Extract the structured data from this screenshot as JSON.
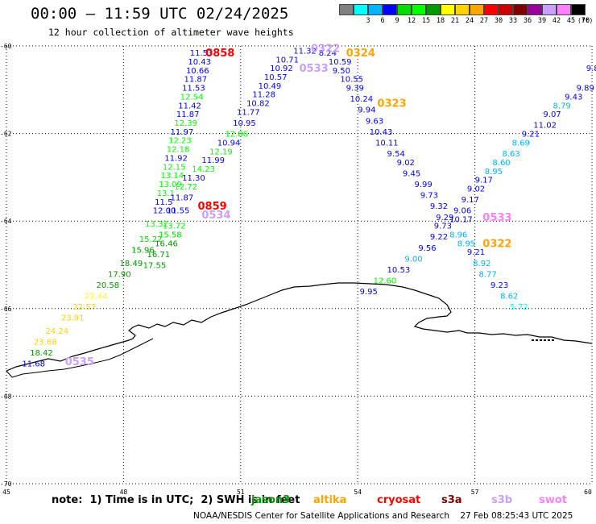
{
  "title": "00:00 – 11:59 UTC 02/24/2025",
  "subtitle": "12 hour collection of altimeter wave heights",
  "colorbar": {
    "unit": "(ft)",
    "cells": [
      {
        "color": "#808080",
        "label": ""
      },
      {
        "color": "#00ffff",
        "label": "3"
      },
      {
        "color": "#00b4ff",
        "label": "6"
      },
      {
        "color": "#0000ff",
        "label": "9"
      },
      {
        "color": "#00dd00",
        "label": "12"
      },
      {
        "color": "#00ff00",
        "label": "15"
      },
      {
        "color": "#009900",
        "label": "18"
      },
      {
        "color": "#ffff00",
        "label": "21"
      },
      {
        "color": "#ffd200",
        "label": "24"
      },
      {
        "color": "#ffa500",
        "label": "27"
      },
      {
        "color": "#ff0000",
        "label": "30"
      },
      {
        "color": "#cc0000",
        "label": "33"
      },
      {
        "color": "#800000",
        "label": "36"
      },
      {
        "color": "#990099",
        "label": "39"
      },
      {
        "color": "#c8a0ff",
        "label": "42"
      },
      {
        "color": "#ff80ff",
        "label": "45"
      },
      {
        "color": "#000000",
        "label": "70"
      }
    ]
  },
  "map": {
    "lon_ticks": [
      "45",
      "48",
      "51",
      "54",
      "57",
      "60"
    ],
    "lat_ticks": [
      "-60",
      "-62",
      "-64",
      "-66",
      "-68",
      "-70"
    ],
    "lon_range": [
      45,
      60
    ],
    "lat_range": [
      -60,
      -70
    ],
    "stamps": [
      {
        "text": "0858",
        "color": "#ff0000",
        "lon": 50.1,
        "lat": -60.15
      },
      {
        "text": "0859",
        "color": "#ff0000",
        "lon": 49.9,
        "lat": -63.65
      },
      {
        "text": "0534",
        "color": "#c8a0ff",
        "lon": 50.0,
        "lat": -63.85
      },
      {
        "text": "0535",
        "color": "#c8a0ff",
        "lon": 46.5,
        "lat": -67.2
      },
      {
        "text": "0533",
        "color": "#c8a0ff",
        "lon": 52.5,
        "lat": -60.5
      },
      {
        "text": "0324",
        "color": "#ffa500",
        "lon": 53.7,
        "lat": -60.15
      },
      {
        "text": "0323",
        "color": "#ffa500",
        "lon": 54.5,
        "lat": -61.3
      },
      {
        "text": "0322",
        "color": "#ffa500",
        "lon": 57.2,
        "lat": -64.5
      },
      {
        "text": "0533",
        "color": "#ff80ff",
        "lon": 57.2,
        "lat": -63.9
      },
      {
        "text": "0322",
        "color": "#c8a0ff",
        "lon": 52.8,
        "lat": -60.05
      }
    ],
    "tracks": [
      [
        {
          "v": "11.53",
          "c": "#0000ff",
          "lon": 49.7,
          "lat": -60.15
        },
        {
          "v": "10.43",
          "c": "#0000ff",
          "lon": 49.65,
          "lat": -60.35
        },
        {
          "v": "10.66",
          "c": "#0000ff",
          "lon": 49.6,
          "lat": -60.55
        },
        {
          "v": "11.87",
          "c": "#0000ff",
          "lon": 49.55,
          "lat": -60.75
        },
        {
          "v": "11.53",
          "c": "#0000ff",
          "lon": 49.5,
          "lat": -60.95
        },
        {
          "v": "12.54",
          "c": "#00ff00",
          "lon": 49.45,
          "lat": -61.15
        },
        {
          "v": "11.42",
          "c": "#0000ff",
          "lon": 49.4,
          "lat": -61.35
        },
        {
          "v": "11.87",
          "c": "#0000ff",
          "lon": 49.35,
          "lat": -61.55
        },
        {
          "v": "12.39",
          "c": "#00ff00",
          "lon": 49.3,
          "lat": -61.75
        },
        {
          "v": "11.97",
          "c": "#0000ff",
          "lon": 49.2,
          "lat": -61.95
        },
        {
          "v": "12.23",
          "c": "#00ff00",
          "lon": 49.15,
          "lat": -62.15
        },
        {
          "v": "12.18",
          "c": "#00ff00",
          "lon": 49.1,
          "lat": -62.35
        },
        {
          "v": "11.92",
          "c": "#0000ff",
          "lon": 49.05,
          "lat": -62.55
        },
        {
          "v": "12.15",
          "c": "#00ff00",
          "lon": 49.0,
          "lat": -62.75
        },
        {
          "v": "13.14",
          "c": "#00ff00",
          "lon": 48.95,
          "lat": -62.95
        },
        {
          "v": "13.09",
          "c": "#00ff00",
          "lon": 48.9,
          "lat": -63.15
        },
        {
          "v": "13.1",
          "c": "#00ff00",
          "lon": 48.85,
          "lat": -63.35
        },
        {
          "v": "11.5",
          "c": "#0000ff",
          "lon": 48.8,
          "lat": -63.55
        },
        {
          "v": "12.00",
          "c": "#0000ff",
          "lon": 48.75,
          "lat": -63.75
        },
        {
          "v": "13.32",
          "c": "#00ff00",
          "lon": 48.55,
          "lat": -64.05
        },
        {
          "v": "15.22",
          "c": "#00dd00",
          "lon": 48.4,
          "lat": -64.4
        },
        {
          "v": "15.96",
          "c": "#009900",
          "lon": 48.2,
          "lat": -64.65
        },
        {
          "v": "18.49",
          "c": "#009900",
          "lon": 47.9,
          "lat": -64.95
        },
        {
          "v": "17.90",
          "c": "#009900",
          "lon": 47.6,
          "lat": -65.2
        },
        {
          "v": "20.58",
          "c": "#009900",
          "lon": 47.3,
          "lat": -65.45
        },
        {
          "v": "22.44",
          "c": "#ffff00",
          "lon": 47.0,
          "lat": -65.7
        },
        {
          "v": "22.57",
          "c": "#ffd200",
          "lon": 46.7,
          "lat": -65.95
        },
        {
          "v": "23.91",
          "c": "#ffd200",
          "lon": 46.4,
          "lat": -66.2
        },
        {
          "v": "24.24",
          "c": "#ffd200",
          "lon": 46.0,
          "lat": -66.5
        },
        {
          "v": "23.68",
          "c": "#ffd200",
          "lon": 45.7,
          "lat": -66.75
        },
        {
          "v": "18.42",
          "c": "#009900",
          "lon": 45.6,
          "lat": -67.0
        },
        {
          "v": "11.68",
          "c": "#0000ff",
          "lon": 45.4,
          "lat": -67.25
        }
      ],
      [
        {
          "v": "12.86",
          "c": "#00ff00",
          "lon": 50.6,
          "lat": -62.0
        },
        {
          "v": "10.94",
          "c": "#0000ff",
          "lon": 50.4,
          "lat": -62.2
        },
        {
          "v": "12.19",
          "c": "#00ff00",
          "lon": 50.2,
          "lat": -62.4
        },
        {
          "v": "11.99",
          "c": "#0000ff",
          "lon": 50.0,
          "lat": -62.6
        },
        {
          "v": "14.23",
          "c": "#00ff00",
          "lon": 49.75,
          "lat": -62.8
        },
        {
          "v": "11.30",
          "c": "#0000ff",
          "lon": 49.5,
          "lat": -63.0
        },
        {
          "v": "12.72",
          "c": "#00ff00",
          "lon": 49.3,
          "lat": -63.2
        },
        {
          "v": "11.87",
          "c": "#0000ff",
          "lon": 49.2,
          "lat": -63.45
        },
        {
          "v": "11.55",
          "c": "#0000ff",
          "lon": 49.1,
          "lat": -63.75
        },
        {
          "v": "13.72",
          "c": "#00ff00",
          "lon": 49.0,
          "lat": -64.1
        },
        {
          "v": "15.58",
          "c": "#00dd00",
          "lon": 48.9,
          "lat": -64.3
        },
        {
          "v": "16.46",
          "c": "#009900",
          "lon": 48.8,
          "lat": -64.5
        },
        {
          "v": "16.71",
          "c": "#009900",
          "lon": 48.6,
          "lat": -64.75
        },
        {
          "v": "17.55",
          "c": "#009900",
          "lon": 48.5,
          "lat": -65.0
        }
      ],
      [
        {
          "v": "11.32",
          "c": "#0000ff",
          "lon": 52.35,
          "lat": -60.1
        },
        {
          "v": "10.71",
          "c": "#0000ff",
          "lon": 51.9,
          "lat": -60.3
        },
        {
          "v": "10.92",
          "c": "#0000ff",
          "lon": 51.75,
          "lat": -60.5
        },
        {
          "v": "10.57",
          "c": "#0000ff",
          "lon": 51.6,
          "lat": -60.7
        },
        {
          "v": "10.49",
          "c": "#0000ff",
          "lon": 51.45,
          "lat": -60.9
        },
        {
          "v": "11.28",
          "c": "#0000ff",
          "lon": 51.3,
          "lat": -61.1
        },
        {
          "v": "10.82",
          "c": "#0000ff",
          "lon": 51.15,
          "lat": -61.3
        },
        {
          "v": "11.77",
          "c": "#0000ff",
          "lon": 50.9,
          "lat": -61.5
        },
        {
          "v": "10.95",
          "c": "#0000ff",
          "lon": 50.8,
          "lat": -61.75
        }
      ],
      [
        {
          "v": "8.24",
          "c": "#0000ff",
          "lon": 53.0,
          "lat": -60.15
        },
        {
          "v": "10.59",
          "c": "#0000ff",
          "lon": 53.25,
          "lat": -60.35
        },
        {
          "v": "9.50",
          "c": "#0000ff",
          "lon": 53.35,
          "lat": -60.55
        },
        {
          "v": "10.55",
          "c": "#0000ff",
          "lon": 53.55,
          "lat": -60.75
        },
        {
          "v": "9.39",
          "c": "#0000ff",
          "lon": 53.7,
          "lat": -60.95
        },
        {
          "v": "10.24",
          "c": "#0000ff",
          "lon": 53.8,
          "lat": -61.2
        },
        {
          "v": "9.94",
          "c": "#0000ff",
          "lon": 54.0,
          "lat": -61.45
        },
        {
          "v": "9.63",
          "c": "#0000ff",
          "lon": 54.2,
          "lat": -61.7
        },
        {
          "v": "10.43",
          "c": "#0000ff",
          "lon": 54.3,
          "lat": -61.95
        },
        {
          "v": "10.11",
          "c": "#0000ff",
          "lon": 54.45,
          "lat": -62.2
        },
        {
          "v": "9.54",
          "c": "#0000ff",
          "lon": 54.75,
          "lat": -62.45
        },
        {
          "v": "9.02",
          "c": "#0000ff",
          "lon": 55.0,
          "lat": -62.65
        },
        {
          "v": "9.45",
          "c": "#0000ff",
          "lon": 55.15,
          "lat": -62.9
        },
        {
          "v": "9.99",
          "c": "#0000ff",
          "lon": 55.45,
          "lat": -63.15
        },
        {
          "v": "9.73",
          "c": "#0000ff",
          "lon": 55.6,
          "lat": -63.4
        },
        {
          "v": "9.32",
          "c": "#0000ff",
          "lon": 55.85,
          "lat": -63.65
        },
        {
          "v": "9.29",
          "c": "#0000ff",
          "lon": 56.0,
          "lat": -63.9
        },
        {
          "v": "10.17",
          "c": "#0000ff",
          "lon": 56.35,
          "lat": -63.95
        },
        {
          "v": "8.96",
          "c": "#00b4ff",
          "lon": 56.35,
          "lat": -64.3
        },
        {
          "v": "8.95",
          "c": "#00b4ff",
          "lon": 56.55,
          "lat": -64.5
        },
        {
          "v": "9.21",
          "c": "#0000ff",
          "lon": 56.8,
          "lat": -64.7
        },
        {
          "v": "8.92",
          "c": "#00b4ff",
          "lon": 56.95,
          "lat": -64.95
        },
        {
          "v": "8.77",
          "c": "#00b4ff",
          "lon": 57.1,
          "lat": -65.2
        },
        {
          "v": "9.23",
          "c": "#0000ff",
          "lon": 57.4,
          "lat": -65.45
        },
        {
          "v": "8.62",
          "c": "#00b4ff",
          "lon": 57.65,
          "lat": -65.7
        },
        {
          "v": "5.72",
          "c": "#00ffff",
          "lon": 57.9,
          "lat": -65.95
        }
      ],
      [
        {
          "v": "9.8",
          "c": "#0000ff",
          "lon": 59.85,
          "lat": -60.5
        },
        {
          "v": "9.89",
          "c": "#0000ff",
          "lon": 59.6,
          "lat": -60.95
        },
        {
          "v": "9.43",
          "c": "#0000ff",
          "lon": 59.3,
          "lat": -61.15
        },
        {
          "v": "8.79",
          "c": "#00b4ff",
          "lon": 59.0,
          "lat": -61.35
        },
        {
          "v": "9.07",
          "c": "#0000ff",
          "lon": 58.75,
          "lat": -61.55
        },
        {
          "v": "11.02",
          "c": "#0000ff",
          "lon": 58.5,
          "lat": -61.8
        },
        {
          "v": "9.21",
          "c": "#0000ff",
          "lon": 58.2,
          "lat": -62.0
        },
        {
          "v": "8.69",
          "c": "#00b4ff",
          "lon": 57.95,
          "lat": -62.2
        },
        {
          "v": "8.63",
          "c": "#00b4ff",
          "lon": 57.7,
          "lat": -62.45
        },
        {
          "v": "8.60",
          "c": "#00b4ff",
          "lon": 57.45,
          "lat": -62.65
        },
        {
          "v": "8.95",
          "c": "#00b4ff",
          "lon": 57.25,
          "lat": -62.85
        },
        {
          "v": "9.17",
          "c": "#0000ff",
          "lon": 57.0,
          "lat": -63.05
        },
        {
          "v": "9.02",
          "c": "#0000ff",
          "lon": 56.8,
          "lat": -63.25
        },
        {
          "v": "9.17",
          "c": "#0000ff",
          "lon": 56.65,
          "lat": -63.5
        },
        {
          "v": "9.06",
          "c": "#0000ff",
          "lon": 56.45,
          "lat": -63.75
        },
        {
          "v": "9.73",
          "c": "#0000ff",
          "lon": 55.95,
          "lat": -64.1
        },
        {
          "v": "9.22",
          "c": "#0000ff",
          "lon": 55.85,
          "lat": -64.35
        },
        {
          "v": "9.56",
          "c": "#0000ff",
          "lon": 55.55,
          "lat": -64.6
        },
        {
          "v": "9.00",
          "c": "#00b4ff",
          "lon": 55.2,
          "lat": -64.85
        },
        {
          "v": "10.53",
          "c": "#0000ff",
          "lon": 54.75,
          "lat": -65.1
        },
        {
          "v": "12.60",
          "c": "#00ff00",
          "lon": 54.4,
          "lat": -65.35
        },
        {
          "v": "9.95",
          "c": "#0000ff",
          "lon": 54.05,
          "lat": -65.6
        }
      ]
    ]
  },
  "note": "note:  1) Time is in UTC;  2) SWH is in feet",
  "missions": [
    {
      "name": "jason3",
      "color": "#009900"
    },
    {
      "name": "altika",
      "color": "#ffa500"
    },
    {
      "name": "cryosat",
      "color": "#ff0000"
    },
    {
      "name": "s3a",
      "color": "#800000"
    },
    {
      "name": "s3b",
      "color": "#c8a0ff"
    },
    {
      "name": "swot",
      "color": "#ff80ff"
    }
  ],
  "footer": "NOAA/NESDIS Center for Satellite Applications and Research    27 Feb 08:25:43 UTC 2025"
}
